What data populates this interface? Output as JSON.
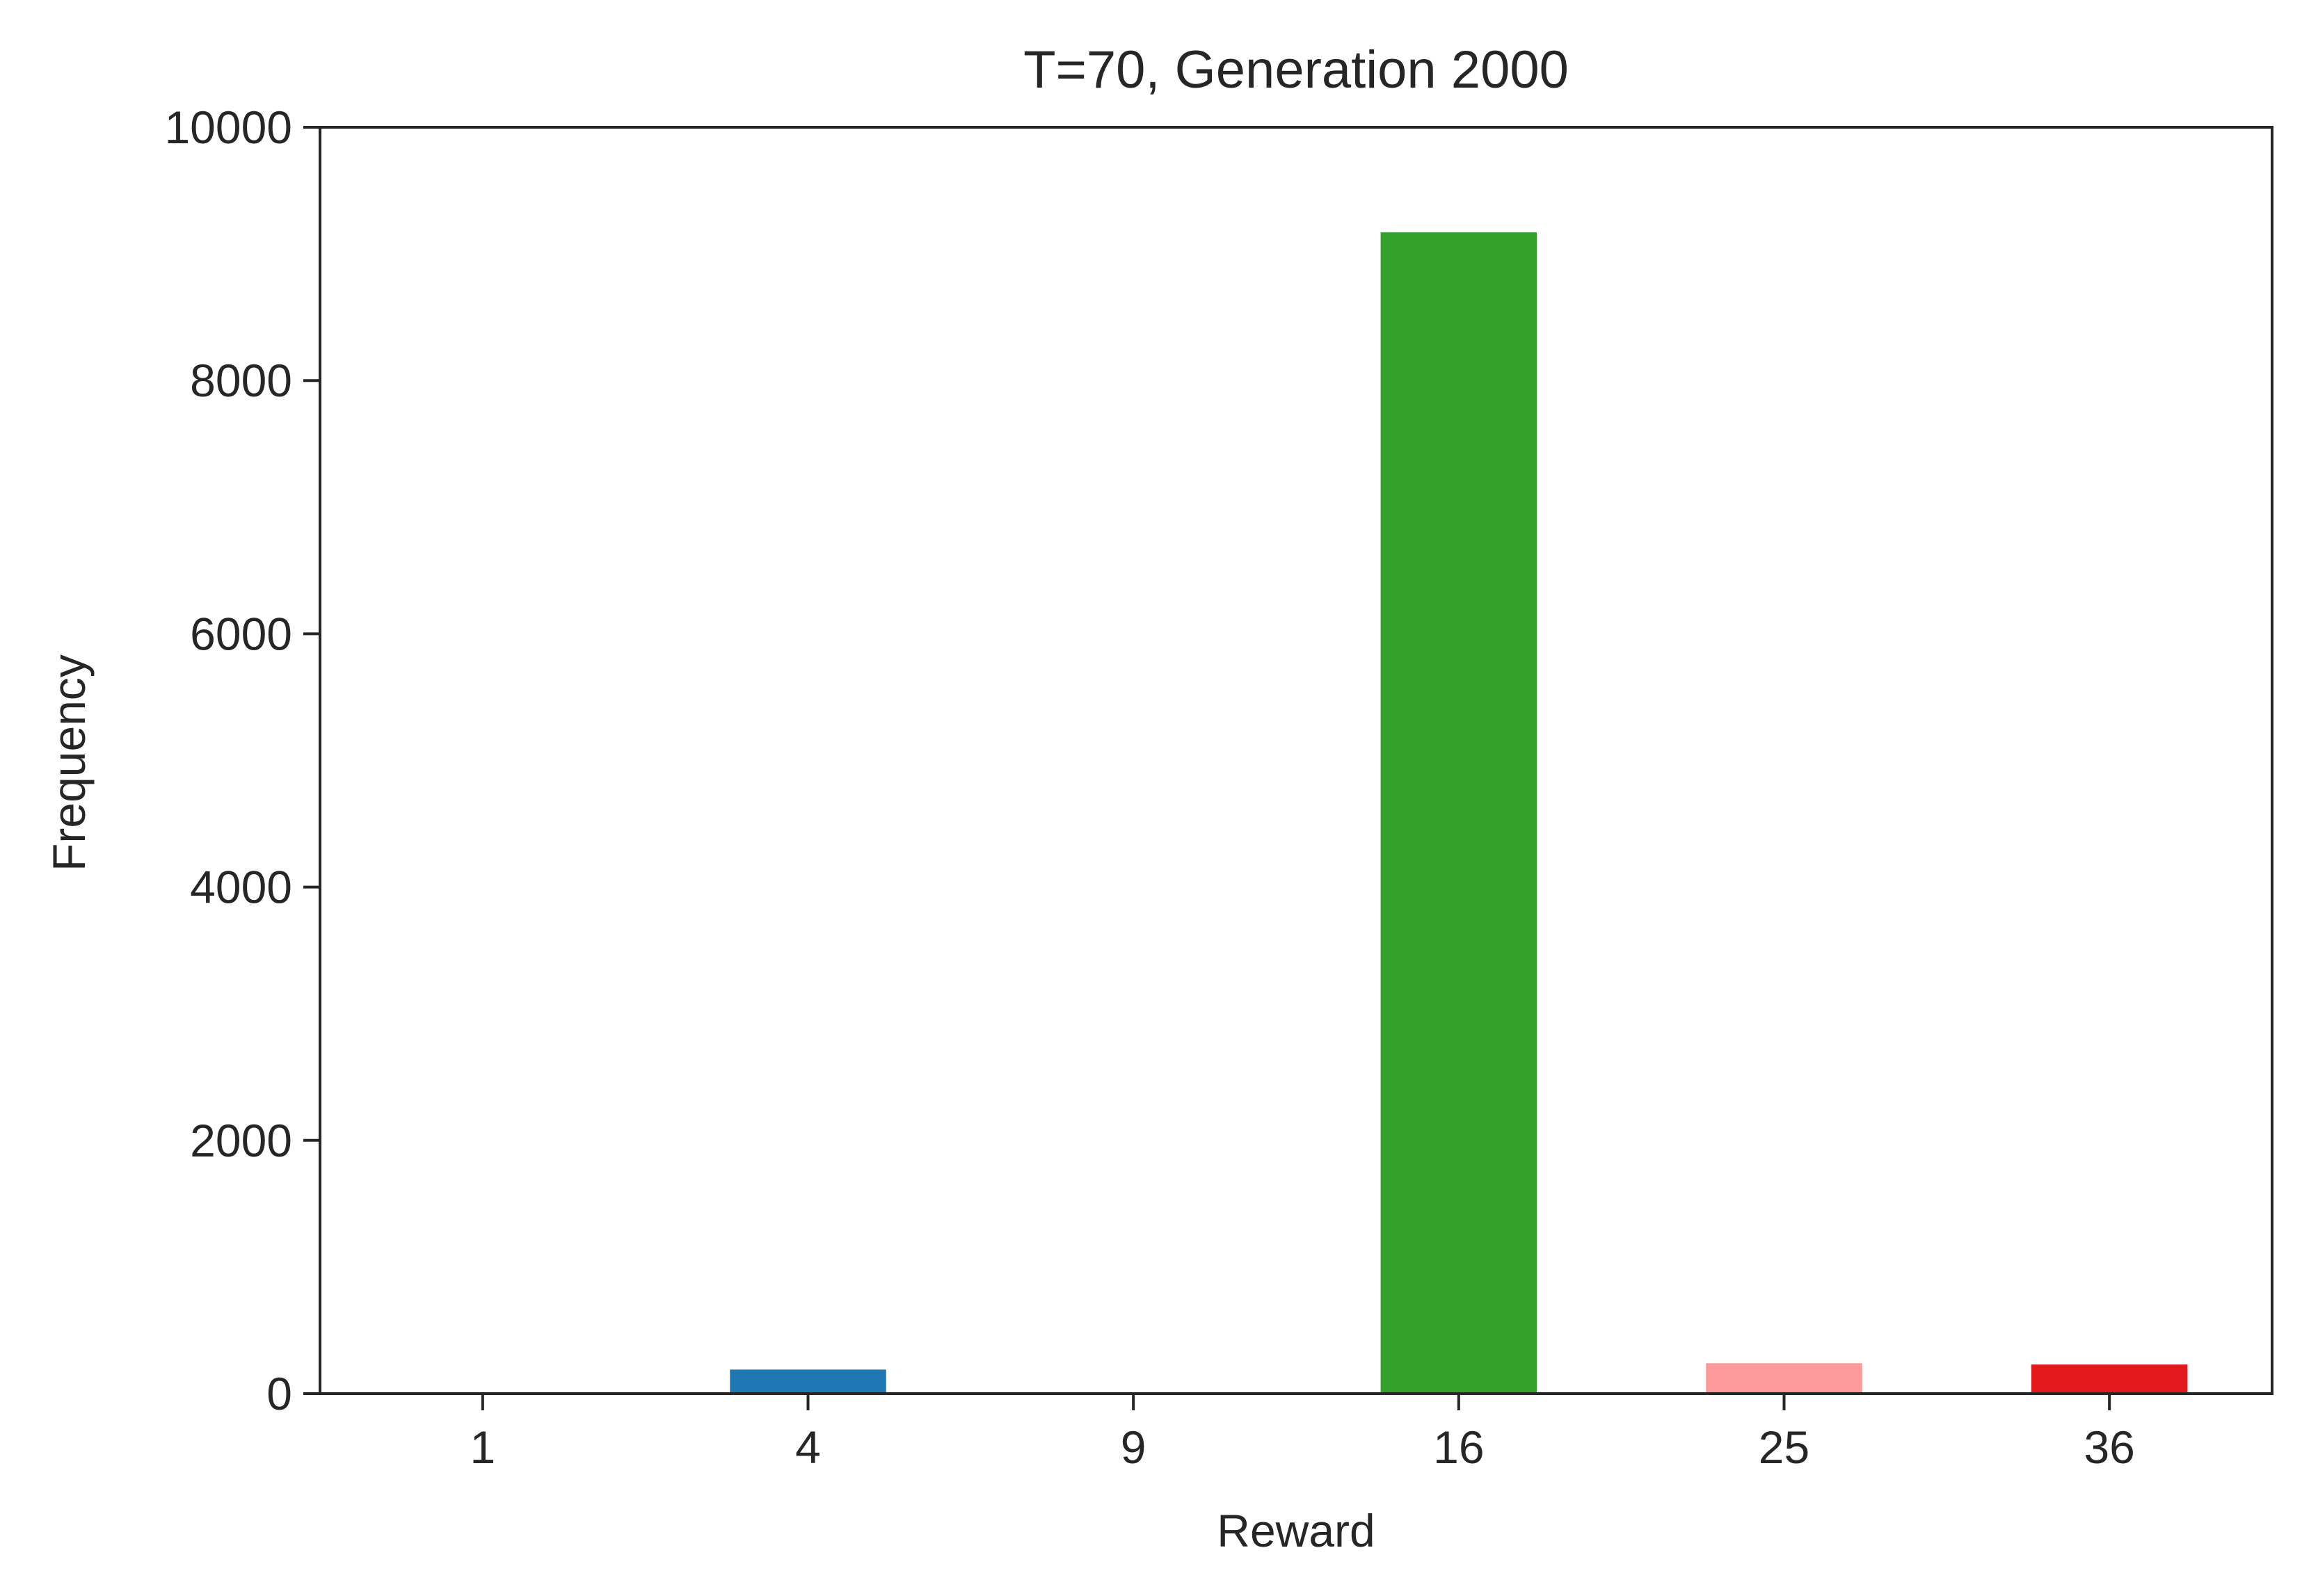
{
  "chart_data": {
    "type": "bar",
    "title": "T=70, Generation 2000",
    "xlabel": "Reward",
    "ylabel": "Frequency",
    "categories": [
      "1",
      "4",
      "9",
      "16",
      "25",
      "36"
    ],
    "values": [
      0,
      190,
      0,
      9170,
      240,
      230
    ],
    "colors": [
      "#a6cee3",
      "#1f78b4",
      "#b2df8a",
      "#33a02c",
      "#fb9a99",
      "#e31a1c"
    ],
    "ylim": [
      0,
      10000
    ],
    "yticks": [
      0,
      2000,
      4000,
      6000,
      8000,
      10000
    ],
    "grid": false
  }
}
